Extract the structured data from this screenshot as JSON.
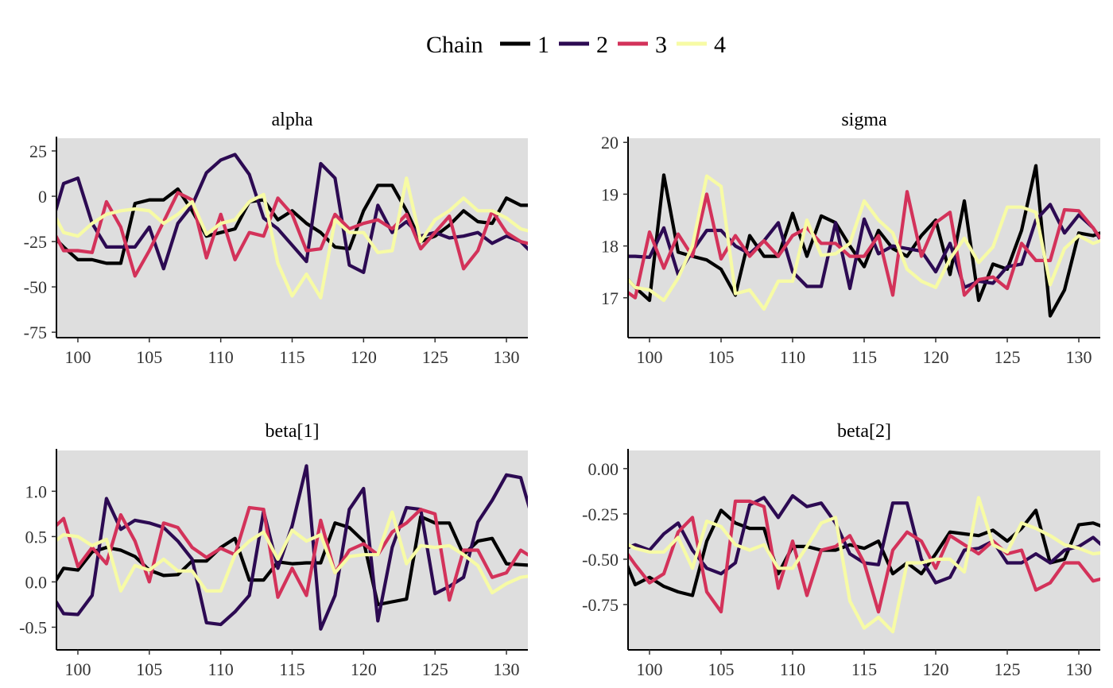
{
  "legend": {
    "title": "Chain",
    "items": [
      {
        "label": "1",
        "color": "#000000"
      },
      {
        "label": "2",
        "color": "#2c0a52"
      },
      {
        "label": "3",
        "color": "#d3325a"
      },
      {
        "label": "4",
        "color": "#f7fba5"
      }
    ]
  },
  "chart_data": [
    {
      "type": "line",
      "title": "alpha",
      "xlim": [
        98.5,
        131.5
      ],
      "ylim": [
        -78,
        32
      ],
      "x_ticks": [
        100,
        105,
        110,
        115,
        120,
        125,
        130
      ],
      "y_ticks": [
        {
          "value": 25,
          "label": "25"
        },
        {
          "value": 0,
          "label": "0"
        },
        {
          "value": -25,
          "label": "-25"
        },
        {
          "value": -50,
          "label": "-50"
        },
        {
          "value": -75,
          "label": "-75"
        }
      ],
      "x": [
        98,
        99,
        100,
        101,
        102,
        103,
        104,
        105,
        106,
        107,
        108,
        109,
        110,
        111,
        112,
        113,
        114,
        115,
        116,
        117,
        118,
        119,
        120,
        121,
        122,
        123,
        124,
        125,
        126,
        127,
        128,
        129,
        130,
        131,
        132
      ],
      "series": [
        {
          "name": "1",
          "values": [
            -20,
            -28,
            -35,
            -35,
            -37,
            -37,
            -4,
            -2,
            -2,
            4,
            -8,
            -22,
            -20,
            -18,
            -3,
            -2,
            -13,
            -8,
            -15,
            -20,
            -28,
            -29,
            -8,
            6,
            6,
            -8,
            -25,
            -22,
            -16,
            -8,
            -14,
            -15,
            -1,
            -5,
            -5
          ]
        },
        {
          "name": "2",
          "values": [
            -20,
            7,
            10,
            -15,
            -28,
            -28,
            -28,
            -17,
            -40,
            -15,
            -5,
            13,
            20,
            23,
            12,
            -12,
            -18,
            -27,
            -36,
            18,
            10,
            -38,
            -42,
            -5,
            -20,
            -14,
            -22,
            -20,
            -23,
            -22,
            -20,
            -26,
            -22,
            -25,
            -33
          ]
        },
        {
          "name": "3",
          "values": [
            -15,
            -30,
            -30,
            -31,
            -3,
            -17,
            -44,
            -30,
            -14,
            2,
            -2,
            -34,
            -10,
            -35,
            -20,
            -22,
            -1,
            -10,
            -30,
            -29,
            -10,
            -18,
            -15,
            -13,
            -18,
            -10,
            -29,
            -20,
            -11,
            -40,
            -30,
            -8,
            -20,
            -25,
            -27
          ]
        },
        {
          "name": "4",
          "values": [
            -5,
            -20,
            -22,
            -15,
            -10,
            -8,
            -7,
            -8,
            -15,
            -10,
            -3,
            -21,
            -15,
            -13,
            -3,
            1,
            -37,
            -55,
            -43,
            -56,
            -13,
            -20,
            -20,
            -31,
            -30,
            10,
            -25,
            -13,
            -8,
            -1,
            -8,
            -8,
            -12,
            -18,
            -20
          ]
        }
      ]
    },
    {
      "type": "line",
      "title": "sigma",
      "xlim": [
        98.5,
        131.5
      ],
      "ylim": [
        16.23,
        20.08
      ],
      "x_ticks": [
        100,
        105,
        110,
        115,
        120,
        125,
        130
      ],
      "y_ticks": [
        {
          "value": 20,
          "label": "20"
        },
        {
          "value": 19,
          "label": "19"
        },
        {
          "value": 18,
          "label": "18"
        },
        {
          "value": 17,
          "label": "17"
        }
      ],
      "x": [
        98,
        99,
        100,
        101,
        102,
        103,
        104,
        105,
        106,
        107,
        108,
        109,
        110,
        111,
        112,
        113,
        114,
        115,
        116,
        117,
        118,
        119,
        120,
        121,
        122,
        123,
        124,
        125,
        126,
        127,
        128,
        129,
        130,
        131,
        132
      ],
      "series": [
        {
          "name": "1",
          "values": [
            17.5,
            17.2,
            16.95,
            19.37,
            17.88,
            17.8,
            17.73,
            17.55,
            17.05,
            18.2,
            17.8,
            17.8,
            18.63,
            17.8,
            18.58,
            18.45,
            18.0,
            17.6,
            18.3,
            17.95,
            17.8,
            18.2,
            18.5,
            17.45,
            18.87,
            16.95,
            17.65,
            17.55,
            18.3,
            19.55,
            16.65,
            17.15,
            18.25,
            18.2,
            18.3
          ]
        },
        {
          "name": "2",
          "values": [
            17.8,
            17.8,
            17.78,
            18.35,
            17.45,
            17.9,
            18.3,
            18.3,
            18.0,
            17.85,
            18.1,
            18.45,
            17.5,
            17.22,
            17.22,
            18.45,
            17.18,
            18.52,
            17.85,
            18.0,
            17.95,
            17.9,
            17.5,
            18.05,
            17.2,
            17.32,
            17.28,
            17.6,
            17.65,
            18.5,
            18.8,
            18.25,
            18.6,
            18.35,
            17.9
          ]
        },
        {
          "name": "3",
          "values": [
            17.2,
            17.0,
            18.27,
            17.57,
            18.23,
            17.8,
            19.0,
            17.75,
            18.2,
            17.8,
            18.1,
            17.8,
            18.2,
            18.35,
            18.05,
            18.05,
            17.8,
            17.8,
            18.2,
            17.05,
            19.05,
            17.8,
            18.45,
            18.65,
            17.05,
            17.35,
            17.4,
            17.18,
            18.05,
            17.72,
            17.72,
            18.7,
            18.68,
            18.35,
            17.95
          ]
        },
        {
          "name": "4",
          "values": [
            17.5,
            17.2,
            17.15,
            16.95,
            17.38,
            18.0,
            19.35,
            19.15,
            17.08,
            17.15,
            16.78,
            17.32,
            17.32,
            18.5,
            17.82,
            17.85,
            18.05,
            18.87,
            18.5,
            18.25,
            17.55,
            17.32,
            17.2,
            17.75,
            18.15,
            17.68,
            17.98,
            18.75,
            18.75,
            18.65,
            17.25,
            17.95,
            18.2,
            18.05,
            18.15
          ]
        }
      ]
    },
    {
      "type": "line",
      "title": "beta[1]",
      "xlim": [
        98.5,
        131.5
      ],
      "ylim": [
        -0.75,
        1.45
      ],
      "x_ticks": [
        100,
        105,
        110,
        115,
        120,
        125,
        130
      ],
      "y_ticks": [
        {
          "value": 1.0,
          "label": "1.0"
        },
        {
          "value": 0.5,
          "label": "0.5"
        },
        {
          "value": 0.0,
          "label": "0.0"
        },
        {
          "value": -0.5,
          "label": "-0.5"
        }
      ],
      "x": [
        98,
        99,
        100,
        101,
        102,
        103,
        104,
        105,
        106,
        107,
        108,
        109,
        110,
        111,
        112,
        113,
        114,
        115,
        116,
        117,
        118,
        119,
        120,
        121,
        122,
        123,
        124,
        125,
        126,
        127,
        128,
        129,
        130,
        131,
        132
      ],
      "series": [
        {
          "name": "1",
          "values": [
            -0.1,
            0.15,
            0.13,
            0.33,
            0.38,
            0.35,
            0.28,
            0.13,
            0.07,
            0.08,
            0.23,
            0.23,
            0.38,
            0.48,
            0.02,
            0.02,
            0.22,
            0.2,
            0.21,
            0.21,
            0.65,
            0.6,
            0.45,
            -0.25,
            -0.22,
            -0.19,
            0.72,
            0.65,
            0.65,
            0.3,
            0.45,
            0.48,
            0.2,
            0.19,
            0.18
          ]
        },
        {
          "name": "2",
          "values": [
            -0.1,
            -0.35,
            -0.36,
            -0.15,
            0.92,
            0.58,
            0.68,
            0.65,
            0.6,
            0.45,
            0.25,
            -0.45,
            -0.47,
            -0.33,
            -0.15,
            0.78,
            0.15,
            0.62,
            1.28,
            -0.52,
            -0.15,
            0.8,
            1.03,
            -0.43,
            0.38,
            0.82,
            0.8,
            -0.13,
            -0.05,
            0.05,
            0.66,
            0.9,
            1.18,
            1.15,
            0.6
          ]
        },
        {
          "name": "3",
          "values": [
            0.55,
            0.7,
            0.17,
            0.38,
            0.2,
            0.74,
            0.45,
            0.0,
            0.65,
            0.6,
            0.38,
            0.27,
            0.37,
            0.3,
            0.82,
            0.8,
            -0.17,
            0.15,
            -0.15,
            0.68,
            0.1,
            0.35,
            0.42,
            0.3,
            0.55,
            0.65,
            0.8,
            0.75,
            -0.2,
            0.35,
            0.35,
            0.05,
            0.1,
            0.35,
            0.25
          ]
        },
        {
          "name": "4",
          "values": [
            0.4,
            0.52,
            0.5,
            0.4,
            0.47,
            -0.1,
            0.18,
            0.13,
            0.25,
            0.12,
            0.12,
            -0.1,
            -0.1,
            0.3,
            0.45,
            0.55,
            0.25,
            0.57,
            0.45,
            0.52,
            0.1,
            0.28,
            0.3,
            0.3,
            0.77,
            0.2,
            0.4,
            0.38,
            0.4,
            0.3,
            0.18,
            -0.12,
            -0.02,
            0.05,
            0.07
          ]
        }
      ]
    },
    {
      "type": "line",
      "title": "beta[2]",
      "xlim": [
        98.5,
        131.5
      ],
      "ylim": [
        -1.0,
        0.1
      ],
      "x_ticks": [
        100,
        105,
        110,
        115,
        120,
        125,
        130
      ],
      "y_ticks": [
        {
          "value": 0.0,
          "label": "0.00"
        },
        {
          "value": -0.25,
          "label": "-0.25"
        },
        {
          "value": -0.5,
          "label": "-0.50"
        },
        {
          "value": -0.75,
          "label": "-0.75"
        }
      ],
      "x": [
        98,
        99,
        100,
        101,
        102,
        103,
        104,
        105,
        106,
        107,
        108,
        109,
        110,
        111,
        112,
        113,
        114,
        115,
        116,
        117,
        118,
        119,
        120,
        121,
        122,
        123,
        124,
        125,
        126,
        127,
        128,
        129,
        130,
        131,
        132
      ],
      "series": [
        {
          "name": "1",
          "values": [
            -0.45,
            -0.64,
            -0.6,
            -0.65,
            -0.68,
            -0.7,
            -0.4,
            -0.23,
            -0.3,
            -0.33,
            -0.33,
            -0.58,
            -0.43,
            -0.43,
            -0.45,
            -0.45,
            -0.42,
            -0.44,
            -0.4,
            -0.58,
            -0.52,
            -0.58,
            -0.47,
            -0.35,
            -0.36,
            -0.37,
            -0.34,
            -0.4,
            -0.33,
            -0.23,
            -0.52,
            -0.5,
            -0.31,
            -0.3,
            -0.33
          ]
        },
        {
          "name": "2",
          "values": [
            -0.45,
            -0.42,
            -0.45,
            -0.36,
            -0.3,
            -0.45,
            -0.55,
            -0.58,
            -0.52,
            -0.2,
            -0.16,
            -0.27,
            -0.15,
            -0.21,
            -0.19,
            -0.3,
            -0.47,
            -0.52,
            -0.53,
            -0.19,
            -0.19,
            -0.5,
            -0.63,
            -0.6,
            -0.45,
            -0.44,
            -0.4,
            -0.52,
            -0.52,
            -0.47,
            -0.52,
            -0.45,
            -0.43,
            -0.38,
            -0.45
          ]
        },
        {
          "name": "3",
          "values": [
            -0.42,
            -0.53,
            -0.63,
            -0.58,
            -0.35,
            -0.27,
            -0.68,
            -0.79,
            -0.18,
            -0.18,
            -0.21,
            -0.66,
            -0.4,
            -0.7,
            -0.45,
            -0.43,
            -0.37,
            -0.52,
            -0.79,
            -0.45,
            -0.35,
            -0.4,
            -0.55,
            -0.37,
            -0.42,
            -0.47,
            -0.4,
            -0.47,
            -0.45,
            -0.67,
            -0.63,
            -0.52,
            -0.52,
            -0.62,
            -0.6
          ]
        },
        {
          "name": "4",
          "values": [
            -0.4,
            -0.44,
            -0.46,
            -0.46,
            -0.38,
            -0.55,
            -0.29,
            -0.32,
            -0.42,
            -0.45,
            -0.42,
            -0.55,
            -0.55,
            -0.43,
            -0.3,
            -0.27,
            -0.73,
            -0.88,
            -0.82,
            -0.9,
            -0.52,
            -0.52,
            -0.5,
            -0.5,
            -0.57,
            -0.16,
            -0.42,
            -0.46,
            -0.3,
            -0.33,
            -0.37,
            -0.42,
            -0.44,
            -0.47,
            -0.46
          ]
        }
      ]
    }
  ]
}
